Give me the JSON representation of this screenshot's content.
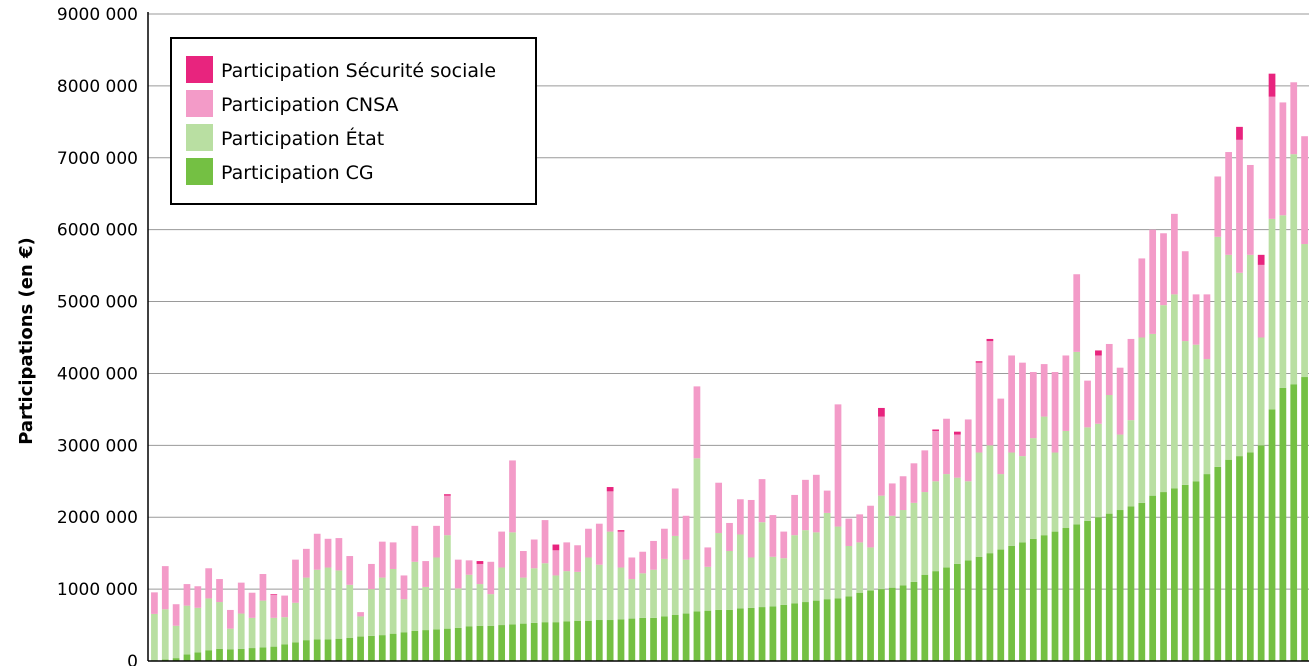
{
  "chart_data": {
    "type": "bar",
    "stacked": true,
    "ylabel": "Participations (en €)",
    "ylim": [
      0,
      9000000
    ],
    "yticks": [
      {
        "value": 0,
        "label": "0"
      },
      {
        "value": 1000000,
        "label": "1000 000"
      },
      {
        "value": 2000000,
        "label": "2000 000"
      },
      {
        "value": 3000000,
        "label": "3000 000"
      },
      {
        "value": 4000000,
        "label": "4000 000"
      },
      {
        "value": 5000000,
        "label": "5000 000"
      },
      {
        "value": 6000000,
        "label": "6000 000"
      },
      {
        "value": 7000000,
        "label": "7000 000"
      },
      {
        "value": 8000000,
        "label": "8000 000"
      },
      {
        "value": 9000000,
        "label": "9000 000"
      }
    ],
    "grid": true,
    "legend_position": "top-left",
    "legend_order": [
      3,
      2,
      1,
      0
    ],
    "colors": [
      "#74c043",
      "#b9dfa2",
      "#f39bc8",
      "#e8247e"
    ],
    "series": [
      {
        "name": "Participation CG",
        "values": [
          5000,
          20000,
          40000,
          90000,
          120000,
          150000,
          170000,
          160000,
          170000,
          180000,
          190000,
          200000,
          230000,
          260000,
          290000,
          300000,
          300000,
          310000,
          320000,
          340000,
          350000,
          360000,
          380000,
          400000,
          420000,
          430000,
          440000,
          450000,
          460000,
          480000,
          490000,
          490000,
          500000,
          510000,
          520000,
          530000,
          540000,
          540000,
          550000,
          560000,
          560000,
          570000,
          570000,
          580000,
          590000,
          600000,
          600000,
          620000,
          640000,
          660000,
          690000,
          700000,
          710000,
          710000,
          730000,
          740000,
          750000,
          760000,
          780000,
          800000,
          820000,
          840000,
          860000,
          870000,
          900000,
          950000,
          980000,
          1000000,
          1020000,
          1050000,
          1100000,
          1200000,
          1250000,
          1300000,
          1350000,
          1400000,
          1450000,
          1500000,
          1550000,
          1600000,
          1650000,
          1700000,
          1750000,
          1800000,
          1850000,
          1900000,
          1950000,
          2000000,
          2050000,
          2100000,
          2150000,
          2200000,
          2300000,
          2350000,
          2400000,
          2450000,
          2500000,
          2600000,
          2700000,
          2800000,
          2850000,
          2900000,
          3000000,
          3500000,
          3800000,
          3850000,
          3950000
        ]
      },
      {
        "name": "Participation État",
        "values": [
          650000,
          700000,
          450000,
          680000,
          620000,
          720000,
          650000,
          290000,
          490000,
          420000,
          650000,
          400000,
          380000,
          550000,
          870000,
          970000,
          1000000,
          950000,
          740000,
          280000,
          650000,
          800000,
          900000,
          460000,
          960000,
          600000,
          1000000,
          1300000,
          550000,
          720000,
          580000,
          440000,
          800000,
          1280000,
          640000,
          760000,
          820000,
          650000,
          700000,
          680000,
          880000,
          770000,
          1230000,
          720000,
          550000,
          620000,
          670000,
          800000,
          1100000,
          750000,
          2130000,
          610000,
          1070000,
          820000,
          1030000,
          700000,
          1180000,
          690000,
          650000,
          950000,
          1000000,
          950000,
          1200000,
          1000000,
          700000,
          700000,
          600000,
          1300000,
          1000000,
          1050000,
          1100000,
          1150000,
          1250000,
          1300000,
          1200000,
          1100000,
          1450000,
          1500000,
          1050000,
          1300000,
          1200000,
          1400000,
          1650000,
          1100000,
          1350000,
          2400000,
          1300000,
          1300000,
          1650000,
          1050000,
          1200000,
          2300000,
          2250000,
          2600000,
          2700000,
          2000000,
          1900000,
          1600000,
          3200000,
          2850000,
          2550000,
          2750000,
          1500000,
          2650000,
          2400000,
          3200000,
          1850000
        ]
      },
      {
        "name": "Participation CNSA",
        "values": [
          300000,
          600000,
          300000,
          300000,
          300000,
          420000,
          320000,
          260000,
          430000,
          350000,
          370000,
          320000,
          300000,
          600000,
          400000,
          500000,
          400000,
          450000,
          400000,
          60000,
          350000,
          500000,
          370000,
          330000,
          500000,
          360000,
          440000,
          550000,
          400000,
          200000,
          280000,
          450000,
          500000,
          1000000,
          370000,
          400000,
          600000,
          350000,
          400000,
          370000,
          400000,
          570000,
          560000,
          500000,
          300000,
          300000,
          400000,
          420000,
          660000,
          610000,
          1000000,
          270000,
          700000,
          390000,
          490000,
          800000,
          600000,
          580000,
          370000,
          560000,
          700000,
          800000,
          310000,
          1700000,
          380000,
          390000,
          580000,
          1100000,
          450000,
          470000,
          550000,
          580000,
          700000,
          770000,
          600000,
          860000,
          1250000,
          1450000,
          1050000,
          1350000,
          1300000,
          920000,
          730000,
          1120000,
          1050000,
          1080000,
          650000,
          950000,
          710000,
          930000,
          1130000,
          1100000,
          1450000,
          1000000,
          1120000,
          1250000,
          700000,
          900000,
          840000,
          1430000,
          1850000,
          1250000,
          1010000,
          1700000,
          1570000,
          1000000,
          1500000
        ]
      },
      {
        "name": "Participation Sécurité sociale",
        "values": [
          0,
          0,
          0,
          0,
          0,
          0,
          0,
          0,
          0,
          0,
          0,
          10000,
          0,
          0,
          0,
          0,
          0,
          0,
          0,
          0,
          0,
          0,
          0,
          0,
          0,
          0,
          0,
          20000,
          0,
          0,
          40000,
          0,
          0,
          0,
          0,
          0,
          0,
          80000,
          0,
          0,
          0,
          0,
          60000,
          20000,
          0,
          0,
          0,
          0,
          0,
          0,
          0,
          0,
          0,
          0,
          0,
          0,
          0,
          0,
          0,
          0,
          0,
          0,
          0,
          0,
          0,
          0,
          0,
          120000,
          0,
          0,
          0,
          0,
          20000,
          0,
          40000,
          0,
          20000,
          30000,
          0,
          0,
          0,
          0,
          0,
          0,
          0,
          0,
          0,
          70000,
          0,
          0,
          0,
          0,
          0,
          0,
          0,
          0,
          0,
          0,
          0,
          0,
          180000,
          0,
          140000,
          320000,
          0,
          0,
          0
        ]
      }
    ]
  }
}
